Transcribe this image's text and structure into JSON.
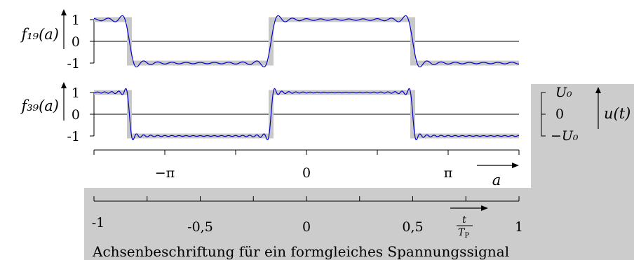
{
  "chart_data": [
    {
      "type": "line",
      "ylabel": "f₁₉(a)",
      "harmonics": 19,
      "xlim": [
        -4.7124,
        4.7124
      ],
      "ylim": [
        -1,
        1
      ],
      "yticks": [
        "1",
        "0",
        "-1"
      ],
      "series": [
        {
          "kind": "square-wave-reference",
          "color": "#c8c8c8",
          "jumps": [
            -3.927,
            -0.7854,
            2.3562
          ]
        },
        {
          "kind": "fourier-partial-sum",
          "color": "#0000cc"
        }
      ]
    },
    {
      "type": "line",
      "ylabel": "f₃₉(a)",
      "harmonics": 39,
      "xlim": [
        -4.7124,
        4.7124
      ],
      "ylim": [
        -1,
        1
      ],
      "yticks": [
        "1",
        "0",
        "-1"
      ],
      "series": [
        {
          "kind": "square-wave-reference",
          "color": "#c8c8c8",
          "jumps": [
            -3.927,
            -0.7854,
            2.3562
          ]
        },
        {
          "kind": "fourier-partial-sum",
          "color": "#0000cc"
        }
      ]
    }
  ],
  "axis_a": {
    "ticks": [
      {
        "value": -3.1416,
        "label": "−π"
      },
      {
        "value": 0,
        "label": "0"
      },
      {
        "value": 3.1416,
        "label": "π"
      }
    ],
    "label": "a"
  },
  "voltage_axis": {
    "ticks": [
      "U₀",
      "0",
      "−U₀"
    ],
    "label": "u(t)"
  },
  "time_axis": {
    "ticks": [
      {
        "value": -1,
        "label": "-1"
      },
      {
        "value": -0.5,
        "label": "-0,5"
      },
      {
        "value": 0,
        "label": "0"
      },
      {
        "value": 0.5,
        "label": "0,5"
      },
      {
        "value": 1,
        "label": "1"
      }
    ],
    "label_num": "t",
    "label_den": "T",
    "label_den_sub": "P"
  },
  "caption": "Achsenbeschriftung für ein formgleiches Spannungssignal",
  "colors": {
    "panel": "#cccccc",
    "curve": "#0000cc",
    "reference": "#c8c8c8"
  }
}
